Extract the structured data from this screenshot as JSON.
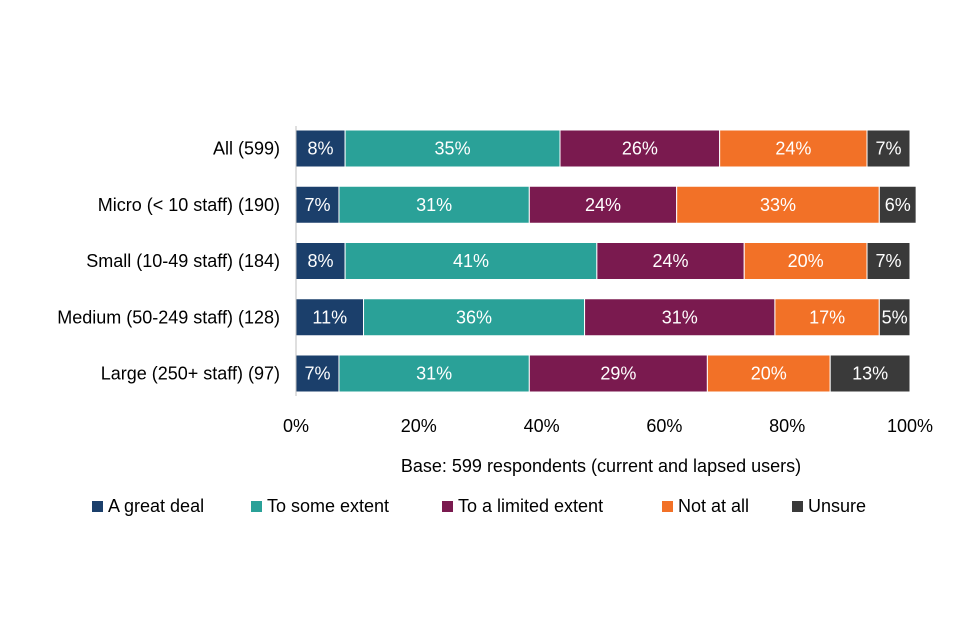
{
  "chart_data": {
    "type": "bar",
    "orientation": "horizontal",
    "stacked": true,
    "title": "",
    "xlabel": "Base: 599 respondents (current and lapsed users)",
    "ylabel": "",
    "xlim": [
      0,
      100
    ],
    "xticks": [
      "0%",
      "20%",
      "40%",
      "60%",
      "80%",
      "100%"
    ],
    "categories": [
      "All (599)",
      "Micro (< 10 staff) (190)",
      "Small (10-49 staff) (184)",
      "Medium (50-249 staff) (128)",
      "Large (250+ staff) (97)"
    ],
    "series": [
      {
        "name": "A great deal",
        "color": "#1b3f6b",
        "values": [
          8,
          7,
          8,
          11,
          7
        ],
        "labels": [
          "8%",
          "7%",
          "8%",
          "11%",
          "7%"
        ]
      },
      {
        "name": "To some extent",
        "color": "#2aa198",
        "values": [
          35,
          31,
          41,
          36,
          31
        ],
        "labels": [
          "35%",
          "31%",
          "41%",
          "36%",
          "31%"
        ]
      },
      {
        "name": "To a limited extent",
        "color": "#7a1a4f",
        "values": [
          26,
          24,
          24,
          31,
          29
        ],
        "labels": [
          "26%",
          "24%",
          "24%",
          "31%",
          "29%"
        ]
      },
      {
        "name": "Not at all",
        "color": "#f27127",
        "values": [
          24,
          33,
          20,
          17,
          20
        ],
        "labels": [
          "24%",
          "33%",
          "20%",
          "17%",
          "20%"
        ]
      },
      {
        "name": "Unsure",
        "color": "#3a3a3a",
        "values": [
          7,
          6,
          7,
          5,
          13
        ],
        "labels": [
          "7%",
          "6%",
          "7%",
          "5%",
          "13%"
        ]
      }
    ],
    "legend_position": "bottom",
    "grid": false
  }
}
